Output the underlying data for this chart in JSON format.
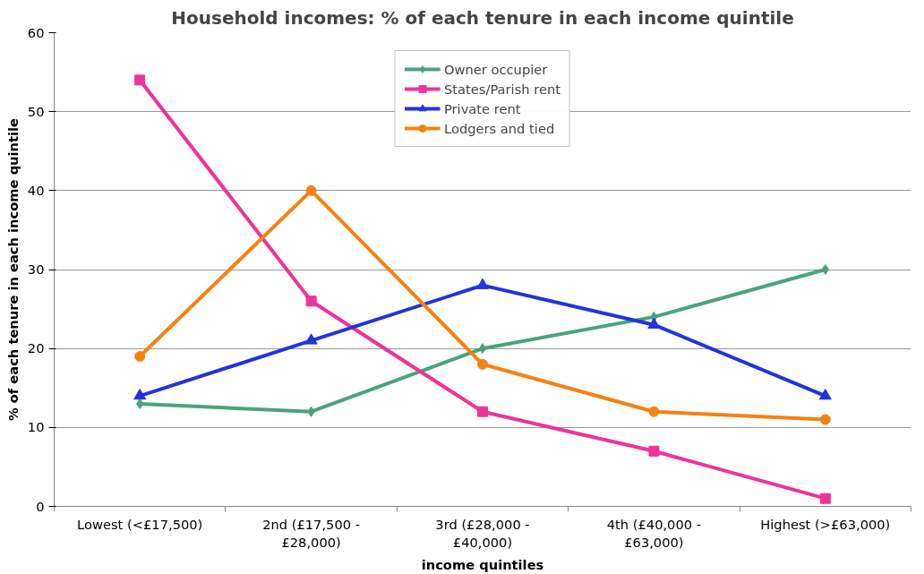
{
  "chart_data": {
    "type": "line",
    "title": "Household incomes: % of each tenure in each income quintile",
    "xlabel": "income quintiles",
    "ylabel": "% of each tenure in each income quintile",
    "categories": [
      "Lowest (<£17,500)",
      "2nd (£17,500 - £28,000)",
      "3rd (£28,000 - £40,000)",
      "4th (£40,000 - £63,000)",
      "Highest (>£63,000)"
    ],
    "series": [
      {
        "name": "Owner occupier",
        "color": "#4aa37c",
        "marker": "diamond",
        "values": [
          13,
          12,
          20,
          24,
          30
        ]
      },
      {
        "name": "States/Parish rent",
        "color": "#ee3399",
        "marker": "square",
        "values": [
          54,
          26,
          12,
          7,
          1
        ]
      },
      {
        "name": "Private rent",
        "color": "#2233dd",
        "marker": "triangle",
        "values": [
          14,
          21,
          28,
          23,
          14
        ]
      },
      {
        "name": "Lodgers and tied",
        "color": "#f58210",
        "marker": "circle",
        "values": [
          19,
          40,
          18,
          12,
          11
        ]
      }
    ],
    "ylim": [
      0,
      60
    ],
    "yticks": [
      0,
      10,
      20,
      30,
      40,
      50,
      60
    ],
    "grid": "y",
    "legend": "top"
  }
}
